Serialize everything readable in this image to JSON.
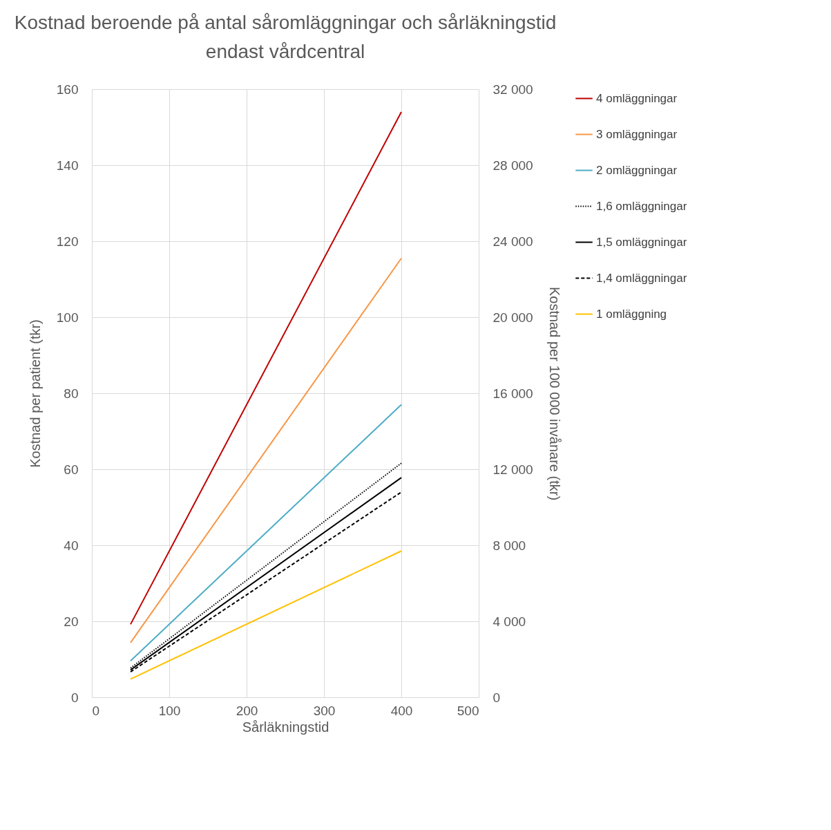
{
  "chart_data": {
    "type": "line",
    "title": "Kostnad beroende på antal såromläggningar och sårläkningstid\nendast vårdcentral",
    "xlabel": "Sårläkningstid",
    "ylabel": "Kostnad per patient (tkr)",
    "y2label": "Kostnad per 100 000 invånare (tkr)",
    "x": [
      50,
      400
    ],
    "series": [
      {
        "name": "4 omläggningar",
        "color": "#c00000",
        "line_style": "solid",
        "values": [
          19.2,
          154
        ]
      },
      {
        "name": "3 omläggningar",
        "color": "#f79646",
        "line_style": "solid",
        "values": [
          14.4,
          115.5
        ]
      },
      {
        "name": "2 omläggningar",
        "color": "#4bacc6",
        "line_style": "solid",
        "values": [
          9.6,
          77
        ]
      },
      {
        "name": "1,6 omläggningar",
        "color": "#000000",
        "line_style": "dotted",
        "values": [
          7.7,
          61.6
        ]
      },
      {
        "name": "1,5 omläggningar",
        "color": "#000000",
        "line_style": "solid",
        "values": [
          7.2,
          57.8
        ]
      },
      {
        "name": "1,4 omläggningar",
        "color": "#000000",
        "line_style": "dashed",
        "values": [
          6.7,
          54
        ]
      },
      {
        "name": "1 omläggning",
        "color": "#ffc000",
        "line_style": "solid",
        "values": [
          4.8,
          38.5
        ]
      }
    ],
    "xlim": [
      0,
      500
    ],
    "xticks": [
      0,
      100,
      200,
      300,
      400,
      500
    ],
    "ylim": [
      0,
      160
    ],
    "yticks": [
      0,
      20,
      40,
      60,
      80,
      100,
      120,
      140,
      160
    ],
    "y2lim": [
      0,
      32000
    ],
    "y2ticks": [
      {
        "value": 0,
        "label": "0"
      },
      {
        "value": 4000,
        "label": "4 000"
      },
      {
        "value": 8000,
        "label": "8 000"
      },
      {
        "value": 12000,
        "label": "12 000"
      },
      {
        "value": 16000,
        "label": "16 000"
      },
      {
        "value": 20000,
        "label": "20 000"
      },
      {
        "value": 24000,
        "label": "24 000"
      },
      {
        "value": 28000,
        "label": "28 000"
      },
      {
        "value": 32000,
        "label": "32 000"
      }
    ],
    "grid": true,
    "legend": "right",
    "marker": "none"
  }
}
